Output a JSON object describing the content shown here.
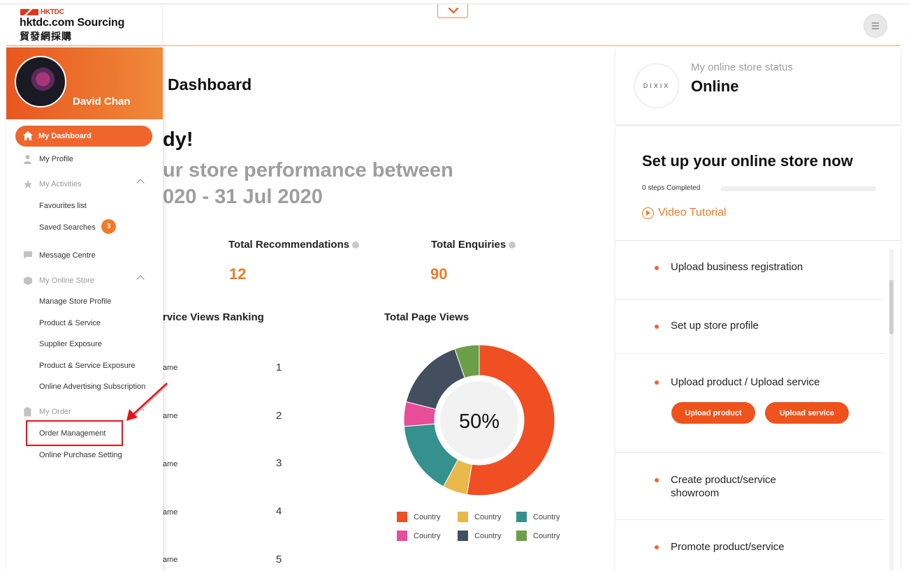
{
  "header": {
    "logo_brand": "HKTDC",
    "logo_title": "hktdc.com Sourcing",
    "logo_subtitle": "貿發網採購",
    "collapse_icon": "chevron-down-icon",
    "menu_icon": "menu-icon"
  },
  "sidebar": {
    "user_name": "David Chan",
    "active_item": "My Dashboard",
    "items": [
      {
        "label": "My Profile",
        "icon": "person-icon"
      },
      {
        "label": "My Activities",
        "icon": "star-icon",
        "group": true
      },
      {
        "label": "Favourites list"
      },
      {
        "label": "Saved Searches",
        "badge": "3"
      },
      {
        "label": "Message Centre",
        "icon": "chat-icon"
      },
      {
        "label": "My Online Store",
        "icon": "box-icon",
        "group": true
      },
      {
        "label": "Manage Store Profile"
      },
      {
        "label": "Product & Service"
      },
      {
        "label": "Supplier Exposure"
      },
      {
        "label": "Product & Service Exposure"
      },
      {
        "label": "Online Advertising Subscription"
      },
      {
        "label": "My Order",
        "icon": "clipboard-icon",
        "group": true
      },
      {
        "label": "Order Management"
      },
      {
        "label": "Online Purchase Setting"
      }
    ]
  },
  "main": {
    "title": "Dashboard",
    "greeting": "dy!",
    "perf_line1": "ur store performance between",
    "perf_line2": "020 - 31 Jul 2020",
    "stats": [
      {
        "label": "Total Recommendations",
        "value": "12"
      },
      {
        "label": "Total Enquiries",
        "value": "90"
      }
    ],
    "ranking_title": "rvice Views Ranking",
    "ranking": [
      {
        "name": "ame",
        "rank": "1"
      },
      {
        "name": "ame",
        "rank": "2"
      },
      {
        "name": "ame",
        "rank": "3"
      },
      {
        "name": "ame",
        "rank": "4"
      },
      {
        "name": "ame",
        "rank": "5"
      }
    ],
    "page_views_title": "Total Page Views",
    "page_views_center": "50%"
  },
  "chart_data": {
    "type": "pie",
    "title": "Total Page Views",
    "center_label": "50%",
    "slices": [
      {
        "name": "Country",
        "value": 50,
        "color": "#f04e23"
      },
      {
        "name": "Country",
        "value": 5,
        "color": "#e8b84a"
      },
      {
        "name": "Country",
        "value": 15,
        "color": "#34918e"
      },
      {
        "name": "Country",
        "value": 5,
        "color": "#e84d9a"
      },
      {
        "name": "Country",
        "value": 15,
        "color": "#434f5e"
      },
      {
        "name": "Country",
        "value": 5,
        "color": "#6a9f48"
      }
    ],
    "legend": [
      {
        "name": "Country",
        "color": "#f04e23"
      },
      {
        "name": "Country",
        "color": "#e8b84a"
      },
      {
        "name": "Country",
        "color": "#34918e"
      },
      {
        "name": "Country",
        "color": "#e84d9a"
      },
      {
        "name": "Country",
        "color": "#434f5e"
      },
      {
        "name": "Country",
        "color": "#6a9f48"
      }
    ],
    "legend_position": "bottom"
  },
  "store": {
    "logo_text": "DIXIX",
    "status_label": "My online store status",
    "status_value": "Online"
  },
  "setup": {
    "title": "Set up your online store now",
    "steps_completed": "0 steps Completed",
    "progress": 0,
    "video_label": "Video Tutorial",
    "steps": [
      {
        "label": "Upload business registration"
      },
      {
        "label": "Set up store profile"
      },
      {
        "label": "Upload product / Upload service"
      },
      {
        "label": "Create product/service showroom"
      },
      {
        "label": "Promote product/service"
      }
    ],
    "upload_product_label": "Upload product",
    "upload_service_label": "Upload service"
  },
  "colors": {
    "accent": "#f0652b",
    "highlight": "#e4141b"
  }
}
